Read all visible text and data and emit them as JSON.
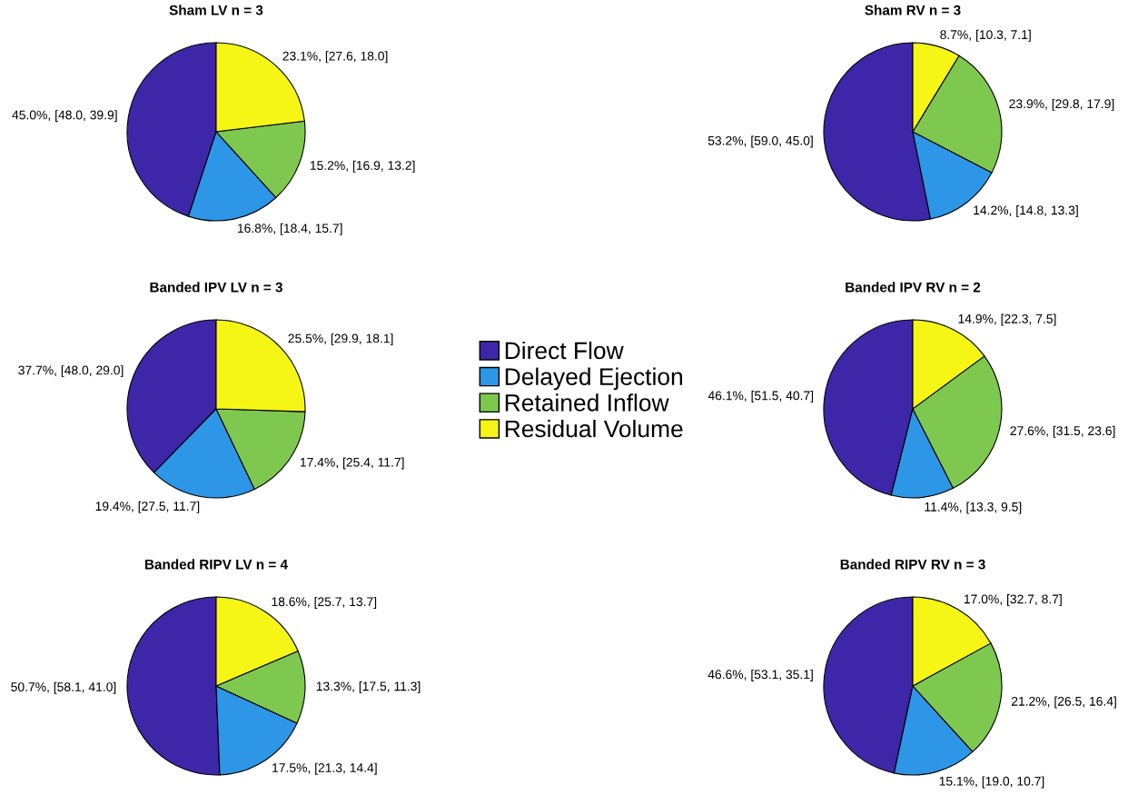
{
  "chart_data": [
    {
      "type": "pie",
      "title": "Sham LV n = 3",
      "categories": [
        "Direct Flow",
        "Delayed Ejection",
        "Retained Inflow",
        "Residual Volume"
      ],
      "colors": [
        "#3e26a8",
        "#2d96e6",
        "#7ec850",
        "#f5f516"
      ],
      "values": [
        45.0,
        16.8,
        15.2,
        23.1
      ],
      "value_labels": [
        "45.0%, [48.0, 39.9]",
        "16.8%, [18.4, 15.7]",
        "15.2%, [16.9, 13.2]",
        "23.1%, [27.6, 18.0]"
      ],
      "legend": "bottom right"
    },
    {
      "type": "pie",
      "title": "Sham RV n = 3",
      "categories": [
        null,
        null,
        null,
        null
      ],
      "colors": [
        "#3e26a8",
        "#2d96e6",
        "#7ec850",
        "#f5f516"
      ],
      "values": [
        53.2,
        14.2,
        23.9,
        8.7
      ],
      "value_labels": [
        "53.2%, [59.0, 45.0]",
        "14.2%, [14.8, 13.3]",
        "23.9%, [29.8, 17.9]",
        "8.7%, [10.3, 7.1]"
      ]
    },
    {
      "type": "pie",
      "title": "Banded IPV LV n = 3",
      "categories": [
        null,
        null,
        null,
        null
      ],
      "colors": [
        "#3e26a8",
        "#2d96e6",
        "#7ec850",
        "#f5f516"
      ],
      "values": [
        37.7,
        19.4,
        17.4,
        25.5
      ],
      "value_labels": [
        "37.7%, [48.0, 29.0]",
        "19.4%, [27.5, 11.7]",
        "17.4%, [25.4, 11.7]",
        "25.5%, [29.9, 18.1]"
      ]
    },
    {
      "type": "pie",
      "title": "Banded IPV RV n = 2",
      "categories": [
        null,
        null,
        null,
        null
      ],
      "colors": [
        "#3e26a8",
        "#2d96e6",
        "#7ec850",
        "#f5f516"
      ],
      "values": [
        46.1,
        11.4,
        27.6,
        14.9
      ],
      "value_labels": [
        "46.1%, [51.5, 40.7]",
        "11.4%, [13.3, 9.5]",
        "27.6%, [31.5, 23.6]",
        "14.9%, [22.3, 7.5]"
      ]
    },
    {
      "type": "pie",
      "title": "Banded RIPV LV n = 4",
      "categories": [
        null,
        null,
        null,
        null
      ],
      "colors": [
        "#3e26a8",
        "#2d96e6",
        "#7ec850",
        "#f5f516"
      ],
      "values": [
        50.7,
        17.5,
        13.3,
        18.6
      ],
      "value_labels": [
        "50.7%, [58.1, 41.0]",
        "17.5%, [21.3, 14.4]",
        "13.3%, [17.5, 11.3]",
        "18.6%, [25.7, 13.7]"
      ]
    },
    {
      "type": "pie",
      "title": "Banded RIPV RV n = 3",
      "categories": [
        null,
        null,
        null,
        null
      ],
      "colors": [
        "#3e26a8",
        "#2d96e6",
        "#7ec850",
        "#f5f516"
      ],
      "values": [
        46.6,
        15.1,
        21.2,
        17.0
      ],
      "value_labels": [
        "46.6%, [53.1, 35.1]",
        "15.1%, [19.0, 10.7]",
        "21.2%, [26.5, 16.4]",
        "17.0%, [32.7, 8.7]"
      ]
    }
  ]
}
